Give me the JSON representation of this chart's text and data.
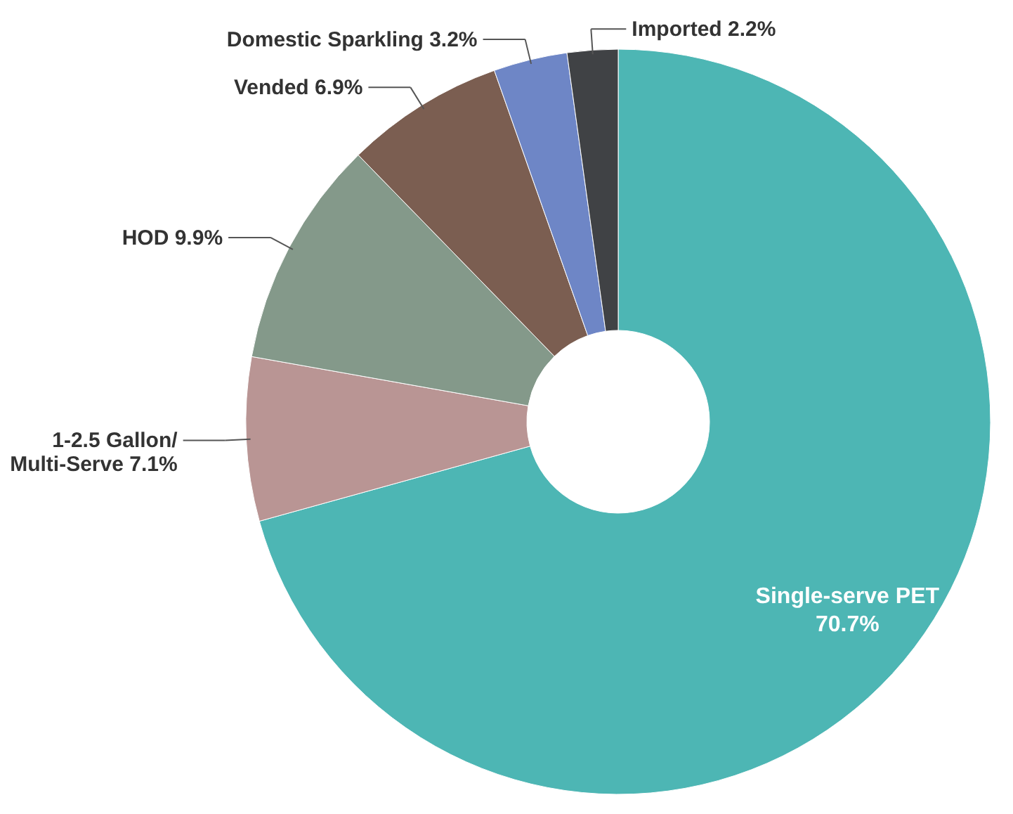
{
  "chart_data": {
    "type": "donut",
    "categories": [
      "Single-serve PET",
      "1-2.5 Gallon/ Multi-Serve",
      "HOD",
      "Vended",
      "Domestic Sparkling",
      "Imported"
    ],
    "values": [
      70.7,
      7.1,
      9.9,
      6.9,
      3.2,
      2.2
    ],
    "colors": [
      "#4db6b4",
      "#b99594",
      "#84998a",
      "#7b5e51",
      "#6e86c6",
      "#404245"
    ],
    "value_labels": [
      "70.7%",
      "7.1%",
      "9.9%",
      "6.9%",
      "3.2%",
      "2.2%"
    ]
  }
}
